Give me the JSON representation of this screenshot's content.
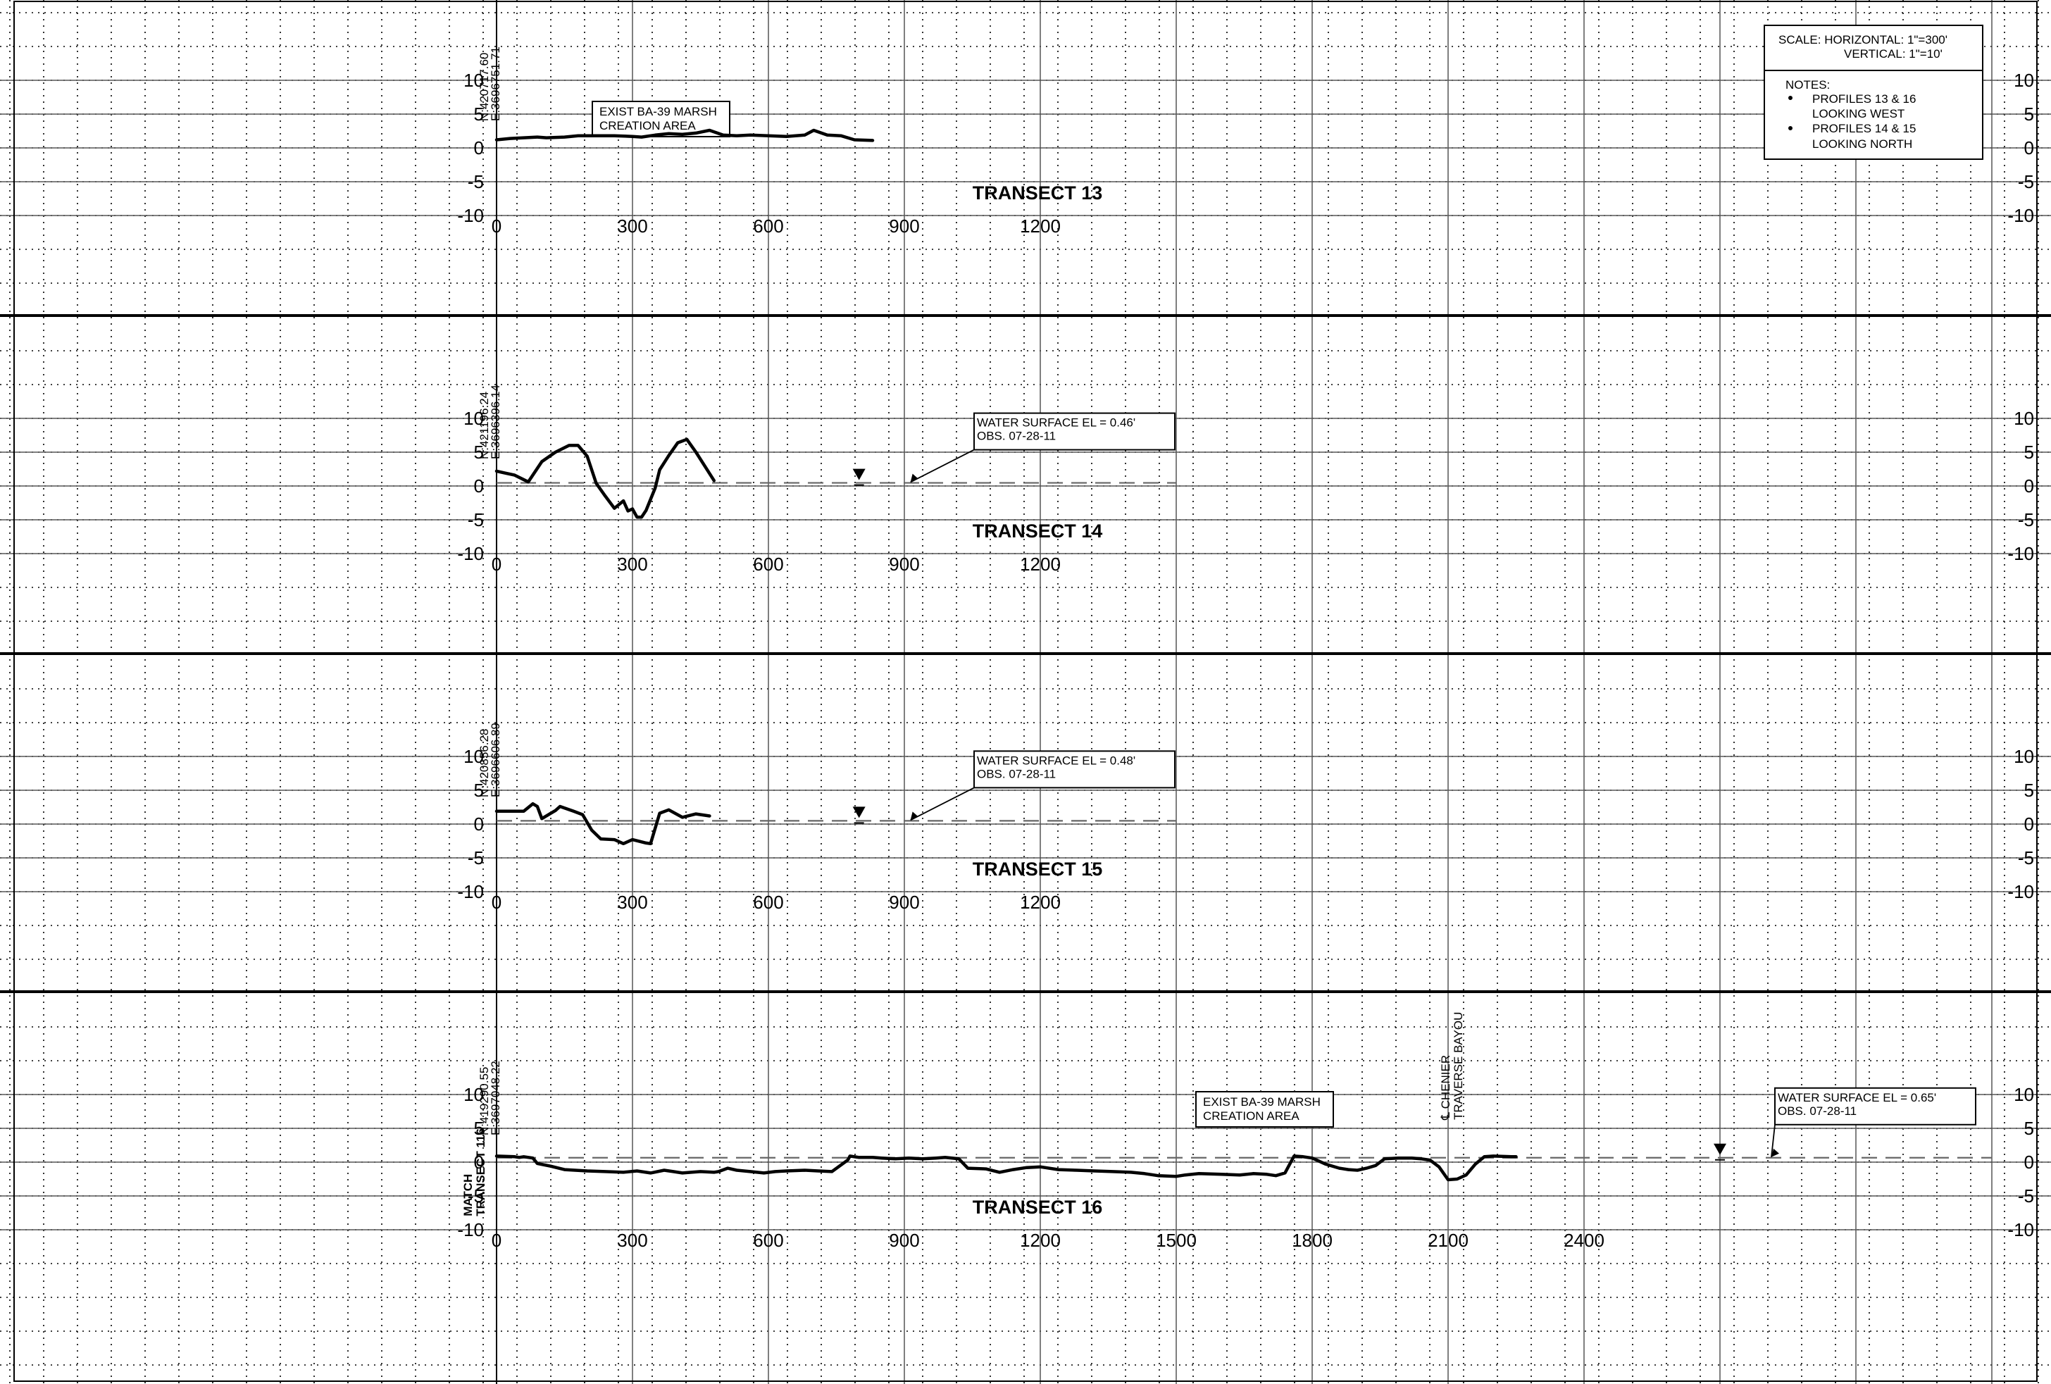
{
  "drawing": {
    "scale_note": {
      "line1": "SCALE: HORIZONTAL: 1\"=300'",
      "line2": "VERTICAL: 1\"=10'"
    },
    "notes": {
      "heading": "NOTES:",
      "items": [
        {
          "line1": "PROFILES 13 & 16",
          "line2": "LOOKING WEST"
        },
        {
          "line1": "PROFILES 14 & 15",
          "line2": "LOOKING NORTH"
        }
      ]
    }
  },
  "chart_data": [
    {
      "type": "line",
      "title": "TRANSECT 13",
      "coordinates": {
        "north": "N:420717.60",
        "east": "E:3696751.71"
      },
      "y_ticks": [
        10,
        5,
        0,
        -5,
        -10
      ],
      "x_ticks": [
        0,
        300,
        600,
        900,
        1200
      ],
      "ylim": [
        -10,
        10
      ],
      "annotation": {
        "line1": "EXIST BA-39 MARSH",
        "line2": "CREATION AREA"
      },
      "profile": [
        [
          0,
          1.2
        ],
        [
          30,
          1.4
        ],
        [
          60,
          1.5
        ],
        [
          90,
          1.6
        ],
        [
          110,
          1.5
        ],
        [
          150,
          1.6
        ],
        [
          180,
          1.8
        ],
        [
          220,
          1.8
        ],
        [
          260,
          1.8
        ],
        [
          300,
          1.7
        ],
        [
          320,
          1.6
        ],
        [
          350,
          1.9
        ],
        [
          380,
          2.1
        ],
        [
          410,
          2.0
        ],
        [
          440,
          2.2
        ],
        [
          470,
          2.6
        ],
        [
          500,
          1.9
        ],
        [
          530,
          1.8
        ],
        [
          560,
          1.9
        ],
        [
          600,
          1.8
        ],
        [
          640,
          1.7
        ],
        [
          680,
          1.9
        ],
        [
          700,
          2.6
        ],
        [
          730,
          1.9
        ],
        [
          760,
          1.8
        ],
        [
          790,
          1.2
        ],
        [
          830,
          1.1
        ]
      ],
      "water_surface": null
    },
    {
      "type": "line",
      "title": "TRANSECT 14",
      "coordinates": {
        "north": "N:421196.24",
        "east": "E:3696396.14"
      },
      "y_ticks": [
        10,
        5,
        0,
        -5,
        -10
      ],
      "x_ticks": [
        0,
        300,
        600,
        900,
        1200
      ],
      "ylim": [
        -10,
        10
      ],
      "annotation": null,
      "profile": [
        [
          0,
          2.2
        ],
        [
          20,
          1.9
        ],
        [
          40,
          1.6
        ],
        [
          70,
          0.6
        ],
        [
          100,
          3.6
        ],
        [
          130,
          5.0
        ],
        [
          160,
          6.0
        ],
        [
          180,
          6.0
        ],
        [
          200,
          4.4
        ],
        [
          220,
          0.4
        ],
        [
          240,
          -1.5
        ],
        [
          260,
          -3.3
        ],
        [
          280,
          -2.2
        ],
        [
          290,
          -3.7
        ],
        [
          300,
          -3.4
        ],
        [
          310,
          -4.6
        ],
        [
          320,
          -4.6
        ],
        [
          330,
          -3.6
        ],
        [
          350,
          -0.3
        ],
        [
          360,
          2.4
        ],
        [
          380,
          4.5
        ],
        [
          400,
          6.4
        ],
        [
          420,
          6.9
        ],
        [
          440,
          5.0
        ],
        [
          480,
          0.8
        ]
      ],
      "water_surface": {
        "elevation": 0.46,
        "label_line1": "WATER SURFACE EL = 0.46'",
        "label_line2": "OBS. 07-28-11",
        "x_start": 0,
        "x_end": 1500,
        "marker_x": 800
      }
    },
    {
      "type": "line",
      "title": "TRANSECT 15",
      "coordinates": {
        "north": "N:420856.28",
        "east": "E:3696606.89"
      },
      "y_ticks": [
        10,
        5,
        0,
        -5,
        -10
      ],
      "x_ticks": [
        0,
        300,
        600,
        900,
        1200
      ],
      "ylim": [
        -10,
        10
      ],
      "annotation": null,
      "profile": [
        [
          0,
          1.9
        ],
        [
          40,
          1.9
        ],
        [
          60,
          1.9
        ],
        [
          80,
          3.0
        ],
        [
          90,
          2.6
        ],
        [
          100,
          0.8
        ],
        [
          120,
          1.6
        ],
        [
          130,
          2.0
        ],
        [
          140,
          2.6
        ],
        [
          170,
          1.9
        ],
        [
          190,
          1.4
        ],
        [
          210,
          -0.9
        ],
        [
          230,
          -2.2
        ],
        [
          260,
          -2.3
        ],
        [
          280,
          -2.9
        ],
        [
          300,
          -2.3
        ],
        [
          330,
          -2.8
        ],
        [
          340,
          -2.9
        ],
        [
          360,
          1.6
        ],
        [
          380,
          2.1
        ],
        [
          410,
          1.0
        ],
        [
          440,
          1.5
        ],
        [
          470,
          1.2
        ]
      ],
      "water_surface": {
        "elevation": 0.48,
        "label_line1": "WATER SURFACE EL = 0.48'",
        "label_line2": "OBS. 07-28-11",
        "x_start": 0,
        "x_end": 1500,
        "marker_x": 800
      }
    },
    {
      "type": "line",
      "title": "TRANSECT 16",
      "coordinates": {
        "north": "N:419290.55",
        "east": "E:3697048.22"
      },
      "match_label": {
        "line1": "MATCH",
        "line2": "TRANSECT 116"
      },
      "y_ticks": [
        10,
        5,
        0,
        -5,
        -10
      ],
      "x_ticks": [
        0,
        300,
        600,
        900,
        1200,
        1500,
        1800,
        2100,
        2400
      ],
      "ylim": [
        -10,
        10
      ],
      "annotation": {
        "line1": "EXIST BA-39 MARSH",
        "line2": "CREATION AREA"
      },
      "bayou_label": {
        "line1": "℄ CHENIER",
        "line2": "TRAVERSE BAYOU"
      },
      "profile": [
        [
          0,
          0.9
        ],
        [
          40,
          0.8
        ],
        [
          50,
          0.7
        ],
        [
          60,
          0.8
        ],
        [
          80,
          0.6
        ],
        [
          90,
          -0.2
        ],
        [
          120,
          -0.6
        ],
        [
          150,
          -1.1
        ],
        [
          200,
          -1.3
        ],
        [
          240,
          -1.4
        ],
        [
          280,
          -1.5
        ],
        [
          310,
          -1.3
        ],
        [
          340,
          -1.6
        ],
        [
          370,
          -1.2
        ],
        [
          390,
          -1.4
        ],
        [
          410,
          -1.6
        ],
        [
          450,
          -1.4
        ],
        [
          480,
          -1.5
        ],
        [
          490,
          -1.4
        ],
        [
          510,
          -0.9
        ],
        [
          530,
          -1.2
        ],
        [
          560,
          -1.4
        ],
        [
          590,
          -1.6
        ],
        [
          615,
          -1.4
        ],
        [
          640,
          -1.3
        ],
        [
          680,
          -1.2
        ],
        [
          710,
          -1.3
        ],
        [
          740,
          -1.4
        ],
        [
          775,
          0.3
        ],
        [
          780,
          0.9
        ],
        [
          800,
          0.7
        ],
        [
          830,
          0.7
        ],
        [
          850,
          0.6
        ],
        [
          880,
          0.5
        ],
        [
          910,
          0.6
        ],
        [
          940,
          0.5
        ],
        [
          970,
          0.6
        ],
        [
          990,
          0.7
        ],
        [
          1020,
          0.5
        ],
        [
          1040,
          -0.9
        ],
        [
          1080,
          -1.0
        ],
        [
          1110,
          -1.5
        ],
        [
          1140,
          -1.1
        ],
        [
          1170,
          -0.8
        ],
        [
          1200,
          -0.7
        ],
        [
          1240,
          -1.1
        ],
        [
          1280,
          -1.2
        ],
        [
          1320,
          -1.3
        ],
        [
          1360,
          -1.4
        ],
        [
          1400,
          -1.5
        ],
        [
          1430,
          -1.7
        ],
        [
          1460,
          -2.0
        ],
        [
          1500,
          -2.1
        ],
        [
          1520,
          -1.9
        ],
        [
          1550,
          -1.7
        ],
        [
          1600,
          -1.8
        ],
        [
          1640,
          -1.9
        ],
        [
          1670,
          -1.7
        ],
        [
          1700,
          -1.8
        ],
        [
          1720,
          -2.0
        ],
        [
          1740,
          -1.6
        ],
        [
          1760,
          0.9
        ],
        [
          1780,
          0.8
        ],
        [
          1800,
          0.6
        ],
        [
          1830,
          -0.3
        ],
        [
          1860,
          -0.9
        ],
        [
          1880,
          -1.1
        ],
        [
          1900,
          -1.2
        ],
        [
          1920,
          -0.9
        ],
        [
          1940,
          -0.5
        ],
        [
          1960,
          0.5
        ],
        [
          1990,
          0.6
        ],
        [
          2020,
          0.6
        ],
        [
          2040,
          0.5
        ],
        [
          2060,
          0.3
        ],
        [
          2080,
          -0.7
        ],
        [
          2100,
          -2.6
        ],
        [
          2120,
          -2.5
        ],
        [
          2140,
          -1.9
        ],
        [
          2160,
          -0.3
        ],
        [
          2180,
          0.8
        ],
        [
          2200,
          0.9
        ],
        [
          2240,
          0.8
        ],
        [
          2250,
          0.8
        ]
      ],
      "water_surface": {
        "elevation": 0.65,
        "label_line1": "WATER SURFACE EL = 0.65'",
        "label_line2": "OBS. 07-28-11",
        "x_start": 0,
        "x_end": 3300,
        "marker_x": 2700
      }
    }
  ]
}
